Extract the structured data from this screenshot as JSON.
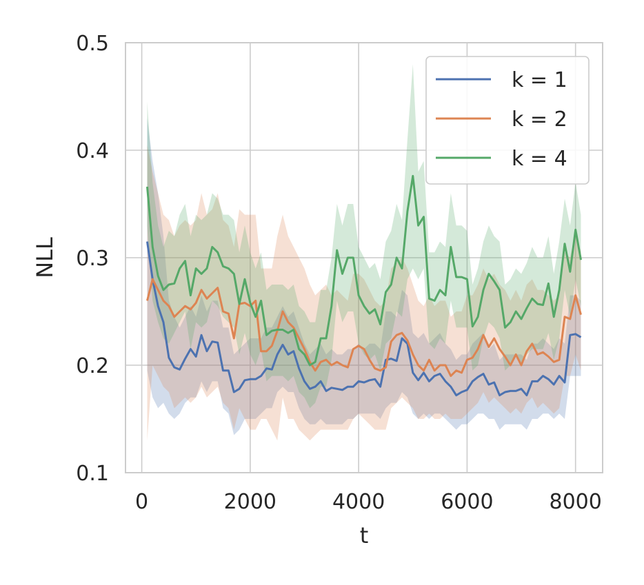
{
  "chart_data": {
    "type": "line",
    "xlabel": "t",
    "ylabel": "NLL",
    "xlim": [
      -300,
      8500
    ],
    "ylim": [
      0.1,
      0.5
    ],
    "xticks": [
      0,
      2000,
      4000,
      6000,
      8000
    ],
    "xtick_labels": [
      "0",
      "2000",
      "4000",
      "6000",
      "8000"
    ],
    "yticks": [
      0.1,
      0.2,
      0.3,
      0.4,
      0.5
    ],
    "ytick_labels": [
      "0.1",
      "0.2",
      "0.3",
      "0.4",
      "0.5"
    ],
    "grid": true,
    "legend": "top-right",
    "x": [
      100,
      200,
      300,
      400,
      500,
      600,
      700,
      800,
      900,
      1000,
      1100,
      1200,
      1300,
      1400,
      1500,
      1600,
      1700,
      1800,
      1900,
      2000,
      2100,
      2200,
      2300,
      2400,
      2500,
      2600,
      2700,
      2800,
      2900,
      3000,
      3100,
      3200,
      3300,
      3400,
      3500,
      3600,
      3700,
      3800,
      3900,
      4000,
      4100,
      4200,
      4300,
      4400,
      4500,
      4600,
      4700,
      4800,
      4900,
      5000,
      5100,
      5200,
      5300,
      5400,
      5500,
      5600,
      5700,
      5800,
      5900,
      6000,
      6100,
      6200,
      6300,
      6400,
      6500,
      6600,
      6700,
      6800,
      6900,
      7000,
      7100,
      7200,
      7300,
      7400,
      7500,
      7600,
      7700,
      7800,
      7900,
      8000,
      8100
    ],
    "series": [
      {
        "name": "k = 1",
        "color": "#4c72b0",
        "values": [
          0.315,
          0.28,
          0.255,
          0.24,
          0.207,
          0.198,
          0.196,
          0.206,
          0.215,
          0.208,
          0.228,
          0.213,
          0.222,
          0.221,
          0.195,
          0.195,
          0.175,
          0.178,
          0.186,
          0.187,
          0.187,
          0.19,
          0.197,
          0.196,
          0.21,
          0.219,
          0.21,
          0.213,
          0.197,
          0.185,
          0.178,
          0.18,
          0.185,
          0.176,
          0.179,
          0.178,
          0.177,
          0.18,
          0.18,
          0.185,
          0.184,
          0.186,
          0.187,
          0.18,
          0.205,
          0.206,
          0.204,
          0.225,
          0.22,
          0.193,
          0.186,
          0.193,
          0.185,
          0.19,
          0.192,
          0.185,
          0.18,
          0.172,
          0.175,
          0.177,
          0.185,
          0.189,
          0.192,
          0.182,
          0.184,
          0.172,
          0.175,
          0.176,
          0.176,
          0.178,
          0.172,
          0.185,
          0.185,
          0.19,
          0.187,
          0.182,
          0.19,
          0.184,
          0.228,
          0.229,
          0.226
        ],
        "lower": [
          0.195,
          0.17,
          0.16,
          0.165,
          0.155,
          0.15,
          0.155,
          0.165,
          0.17,
          0.17,
          0.185,
          0.175,
          0.185,
          0.185,
          0.16,
          0.155,
          0.135,
          0.14,
          0.15,
          0.15,
          0.15,
          0.155,
          0.16,
          0.16,
          0.175,
          0.18,
          0.175,
          0.175,
          0.16,
          0.15,
          0.145,
          0.145,
          0.15,
          0.145,
          0.145,
          0.145,
          0.145,
          0.15,
          0.15,
          0.155,
          0.155,
          0.155,
          0.155,
          0.15,
          0.16,
          0.165,
          0.165,
          0.175,
          0.17,
          0.155,
          0.15,
          0.155,
          0.15,
          0.155,
          0.155,
          0.15,
          0.145,
          0.14,
          0.145,
          0.145,
          0.15,
          0.155,
          0.155,
          0.15,
          0.15,
          0.14,
          0.145,
          0.145,
          0.145,
          0.145,
          0.14,
          0.15,
          0.15,
          0.155,
          0.155,
          0.15,
          0.155,
          0.15,
          0.19,
          0.19,
          0.19
        ],
        "upper": [
          0.43,
          0.39,
          0.36,
          0.32,
          0.26,
          0.245,
          0.235,
          0.245,
          0.255,
          0.245,
          0.265,
          0.25,
          0.26,
          0.26,
          0.235,
          0.235,
          0.21,
          0.215,
          0.22,
          0.225,
          0.225,
          0.225,
          0.235,
          0.235,
          0.245,
          0.255,
          0.245,
          0.25,
          0.235,
          0.22,
          0.21,
          0.215,
          0.22,
          0.21,
          0.215,
          0.21,
          0.21,
          0.215,
          0.215,
          0.22,
          0.215,
          0.22,
          0.22,
          0.215,
          0.25,
          0.25,
          0.245,
          0.27,
          0.265,
          0.23,
          0.225,
          0.23,
          0.22,
          0.225,
          0.23,
          0.22,
          0.215,
          0.205,
          0.21,
          0.21,
          0.22,
          0.225,
          0.23,
          0.215,
          0.22,
          0.205,
          0.21,
          0.21,
          0.21,
          0.21,
          0.205,
          0.22,
          0.22,
          0.225,
          0.22,
          0.215,
          0.225,
          0.22,
          0.265,
          0.265,
          0.26
        ]
      },
      {
        "name": "k = 2",
        "color": "#dd8452",
        "values": [
          0.26,
          0.28,
          0.27,
          0.26,
          0.255,
          0.245,
          0.25,
          0.255,
          0.252,
          0.258,
          0.27,
          0.262,
          0.267,
          0.272,
          0.25,
          0.248,
          0.225,
          0.257,
          0.258,
          0.255,
          0.26,
          0.213,
          0.213,
          0.218,
          0.232,
          0.25,
          0.24,
          0.235,
          0.225,
          0.215,
          0.203,
          0.195,
          0.203,
          0.205,
          0.2,
          0.203,
          0.2,
          0.198,
          0.215,
          0.218,
          0.215,
          0.205,
          0.197,
          0.195,
          0.198,
          0.222,
          0.228,
          0.23,
          0.223,
          0.21,
          0.2,
          0.195,
          0.205,
          0.195,
          0.2,
          0.2,
          0.19,
          0.195,
          0.193,
          0.205,
          0.207,
          0.215,
          0.228,
          0.217,
          0.225,
          0.215,
          0.208,
          0.2,
          0.21,
          0.2,
          0.213,
          0.22,
          0.21,
          0.212,
          0.208,
          0.203,
          0.205,
          0.245,
          0.243,
          0.265,
          0.247
        ],
        "lower": [
          0.13,
          0.2,
          0.19,
          0.18,
          0.175,
          0.16,
          0.165,
          0.17,
          0.165,
          0.17,
          0.18,
          0.17,
          0.175,
          0.18,
          0.165,
          0.16,
          0.14,
          0.16,
          0.15,
          0.14,
          0.14,
          0.15,
          0.15,
          0.14,
          0.13,
          0.17,
          0.15,
          0.15,
          0.14,
          0.135,
          0.13,
          0.135,
          0.14,
          0.14,
          0.14,
          0.14,
          0.14,
          0.14,
          0.15,
          0.155,
          0.15,
          0.145,
          0.14,
          0.14,
          0.14,
          0.16,
          0.165,
          0.17,
          0.165,
          0.16,
          0.15,
          0.15,
          0.155,
          0.15,
          0.15,
          0.155,
          0.15,
          0.15,
          0.15,
          0.155,
          0.16,
          0.165,
          0.175,
          0.165,
          0.17,
          0.165,
          0.16,
          0.155,
          0.16,
          0.155,
          0.165,
          0.17,
          0.16,
          0.165,
          0.16,
          0.155,
          0.16,
          0.19,
          0.19,
          0.21,
          0.195
        ],
        "upper": [
          0.405,
          0.38,
          0.36,
          0.34,
          0.335,
          0.32,
          0.33,
          0.335,
          0.33,
          0.335,
          0.36,
          0.34,
          0.345,
          0.36,
          0.335,
          0.33,
          0.31,
          0.345,
          0.34,
          0.34,
          0.34,
          0.29,
          0.29,
          0.29,
          0.32,
          0.34,
          0.32,
          0.31,
          0.3,
          0.29,
          0.275,
          0.265,
          0.27,
          0.275,
          0.265,
          0.27,
          0.265,
          0.26,
          0.285,
          0.285,
          0.28,
          0.27,
          0.26,
          0.255,
          0.26,
          0.29,
          0.295,
          0.3,
          0.29,
          0.275,
          0.26,
          0.255,
          0.265,
          0.255,
          0.26,
          0.26,
          0.245,
          0.25,
          0.25,
          0.265,
          0.265,
          0.275,
          0.29,
          0.28,
          0.285,
          0.275,
          0.27,
          0.26,
          0.27,
          0.26,
          0.275,
          0.28,
          0.27,
          0.27,
          0.265,
          0.26,
          0.265,
          0.305,
          0.3,
          0.325,
          0.305
        ]
      },
      {
        "name": "k = 4",
        "color": "#55a868",
        "values": [
          0.366,
          0.31,
          0.283,
          0.27,
          0.275,
          0.276,
          0.29,
          0.297,
          0.265,
          0.29,
          0.285,
          0.29,
          0.31,
          0.305,
          0.292,
          0.29,
          0.285,
          0.257,
          0.28,
          0.258,
          0.245,
          0.26,
          0.228,
          0.232,
          0.233,
          0.233,
          0.23,
          0.233,
          0.215,
          0.21,
          0.2,
          0.203,
          0.225,
          0.225,
          0.255,
          0.307,
          0.285,
          0.3,
          0.3,
          0.265,
          0.255,
          0.248,
          0.252,
          0.238,
          0.268,
          0.275,
          0.3,
          0.29,
          0.343,
          0.376,
          0.33,
          0.338,
          0.262,
          0.26,
          0.27,
          0.265,
          0.31,
          0.282,
          0.282,
          0.28,
          0.236,
          0.245,
          0.27,
          0.285,
          0.278,
          0.27,
          0.235,
          0.24,
          0.25,
          0.243,
          0.253,
          0.262,
          0.257,
          0.256,
          0.276,
          0.245,
          0.27,
          0.313,
          0.287,
          0.326,
          0.298
        ],
        "lower": [
          0.33,
          0.26,
          0.24,
          0.225,
          0.22,
          0.23,
          0.24,
          0.25,
          0.215,
          0.24,
          0.235,
          0.24,
          0.26,
          0.255,
          0.245,
          0.24,
          0.235,
          0.21,
          0.23,
          0.21,
          0.2,
          0.215,
          0.185,
          0.19,
          0.19,
          0.19,
          0.185,
          0.19,
          0.175,
          0.17,
          0.16,
          0.165,
          0.18,
          0.18,
          0.205,
          0.26,
          0.24,
          0.25,
          0.25,
          0.22,
          0.21,
          0.205,
          0.21,
          0.195,
          0.22,
          0.225,
          0.25,
          0.245,
          0.28,
          0.29,
          0.28,
          0.29,
          0.22,
          0.215,
          0.225,
          0.22,
          0.26,
          0.235,
          0.235,
          0.235,
          0.195,
          0.2,
          0.225,
          0.24,
          0.235,
          0.225,
          0.195,
          0.2,
          0.21,
          0.2,
          0.21,
          0.215,
          0.215,
          0.215,
          0.23,
          0.205,
          0.225,
          0.27,
          0.245,
          0.28,
          0.255
        ],
        "upper": [
          0.445,
          0.37,
          0.33,
          0.31,
          0.325,
          0.32,
          0.34,
          0.35,
          0.32,
          0.34,
          0.335,
          0.34,
          0.36,
          0.355,
          0.34,
          0.34,
          0.335,
          0.305,
          0.33,
          0.305,
          0.29,
          0.305,
          0.27,
          0.275,
          0.275,
          0.275,
          0.27,
          0.275,
          0.255,
          0.25,
          0.24,
          0.24,
          0.27,
          0.27,
          0.3,
          0.35,
          0.33,
          0.35,
          0.35,
          0.31,
          0.3,
          0.29,
          0.295,
          0.28,
          0.315,
          0.325,
          0.35,
          0.335,
          0.41,
          0.48,
          0.38,
          0.39,
          0.305,
          0.305,
          0.315,
          0.31,
          0.36,
          0.33,
          0.33,
          0.325,
          0.275,
          0.29,
          0.315,
          0.33,
          0.32,
          0.315,
          0.275,
          0.28,
          0.29,
          0.285,
          0.295,
          0.31,
          0.3,
          0.3,
          0.32,
          0.285,
          0.315,
          0.355,
          0.33,
          0.37,
          0.34
        ]
      }
    ]
  }
}
